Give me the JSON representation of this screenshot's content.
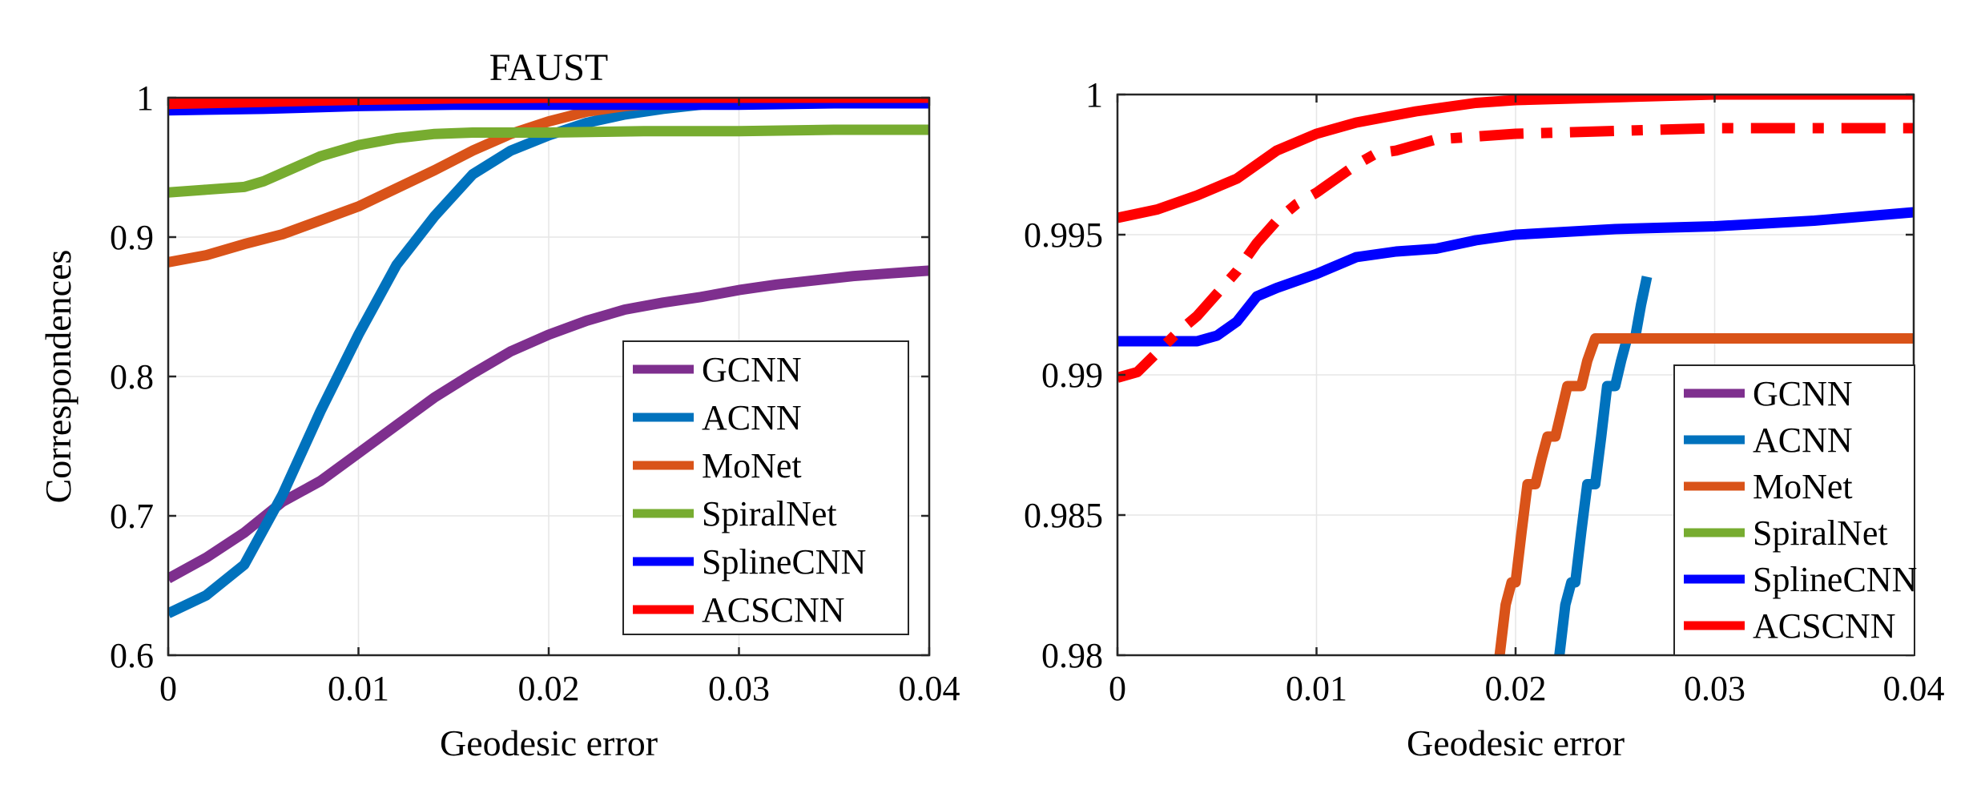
{
  "figure": {
    "series_names": [
      "GCNN",
      "ACNN",
      "MoNet",
      "SpiralNet",
      "SplineCNN",
      "ACSCNN"
    ],
    "colors": {
      "GCNN": "#7E2F8E",
      "ACNN": "#0072BD",
      "MoNet": "#D95319",
      "SpiralNet": "#77AC30",
      "SplineCNN": "#0000FF",
      "ACSCNN": "#FF0000",
      "grid": "#E6E6E6",
      "axis": "#262626"
    }
  },
  "chart_data": [
    {
      "type": "line",
      "title": "FAUST",
      "xlabel": "Geodesic error",
      "ylabel": "Correspondences",
      "xlim": [
        0,
        0.04
      ],
      "ylim": [
        0.6,
        1
      ],
      "xticks": [
        0,
        0.01,
        0.02,
        0.03,
        0.04
      ],
      "xtick_labels": [
        "0",
        "0.01",
        "0.02",
        "0.03",
        "0.04"
      ],
      "yticks": [
        0.6,
        0.7,
        0.8,
        0.9,
        1
      ],
      "ytick_labels": [
        "0.6",
        "0.7",
        "0.8",
        "0.9",
        "1"
      ],
      "grid": true,
      "legend": "bottom-right",
      "series": [
        {
          "name": "GCNN",
          "x": [
            0,
            0.002,
            0.004,
            0.006,
            0.008,
            0.01,
            0.012,
            0.014,
            0.016,
            0.018,
            0.02,
            0.022,
            0.024,
            0.026,
            0.028,
            0.03,
            0.032,
            0.034,
            0.036,
            0.038,
            0.04
          ],
          "y": [
            0.655,
            0.67,
            0.688,
            0.71,
            0.725,
            0.745,
            0.765,
            0.785,
            0.802,
            0.818,
            0.83,
            0.84,
            0.848,
            0.853,
            0.857,
            0.862,
            0.866,
            0.869,
            0.872,
            0.874,
            0.876
          ]
        },
        {
          "name": "ACNN",
          "x": [
            0,
            0.002,
            0.004,
            0.006,
            0.008,
            0.01,
            0.012,
            0.014,
            0.016,
            0.018,
            0.02,
            0.022,
            0.024,
            0.026,
            0.028,
            0.03,
            0.035,
            0.04
          ],
          "y": [
            0.63,
            0.643,
            0.665,
            0.715,
            0.775,
            0.83,
            0.88,
            0.915,
            0.945,
            0.962,
            0.973,
            0.982,
            0.988,
            0.992,
            0.995,
            0.997,
            0.998,
            0.998
          ]
        },
        {
          "name": "MoNet",
          "x": [
            0,
            0.002,
            0.004,
            0.006,
            0.008,
            0.01,
            0.012,
            0.014,
            0.016,
            0.018,
            0.02,
            0.022,
            0.024,
            0.026,
            0.03,
            0.035,
            0.04
          ],
          "y": [
            0.882,
            0.887,
            0.895,
            0.902,
            0.912,
            0.922,
            0.935,
            0.948,
            0.962,
            0.974,
            0.983,
            0.99,
            0.994,
            0.996,
            0.997,
            0.997,
            0.997
          ]
        },
        {
          "name": "SpiralNet",
          "x": [
            0,
            0.002,
            0.004,
            0.005,
            0.006,
            0.008,
            0.01,
            0.012,
            0.014,
            0.016,
            0.018,
            0.02,
            0.025,
            0.03,
            0.035,
            0.04
          ],
          "y": [
            0.932,
            0.934,
            0.936,
            0.94,
            0.946,
            0.958,
            0.966,
            0.971,
            0.974,
            0.975,
            0.975,
            0.975,
            0.976,
            0.976,
            0.977,
            0.977
          ]
        },
        {
          "name": "SplineCNN",
          "x": [
            0,
            0.005,
            0.01,
            0.015,
            0.02,
            0.025,
            0.03,
            0.035,
            0.04
          ],
          "y": [
            0.991,
            0.992,
            0.994,
            0.995,
            0.995,
            0.995,
            0.995,
            0.996,
            0.996
          ]
        },
        {
          "name": "ACSCNN",
          "x": [
            0,
            0.005,
            0.01,
            0.015,
            0.02,
            0.025,
            0.03,
            0.035,
            0.04
          ],
          "y": [
            0.9955,
            0.997,
            0.9985,
            0.9995,
            1,
            1,
            1,
            1,
            1
          ]
        }
      ]
    },
    {
      "type": "line",
      "title": "",
      "xlabel": "Geodesic error",
      "ylabel": "",
      "xlim": [
        0,
        0.04
      ],
      "ylim": [
        0.98,
        1
      ],
      "xticks": [
        0,
        0.01,
        0.02,
        0.03,
        0.04
      ],
      "xtick_labels": [
        "0",
        "0.01",
        "0.02",
        "0.03",
        "0.04"
      ],
      "yticks": [
        0.98,
        0.985,
        0.99,
        0.995,
        1
      ],
      "ytick_labels": [
        "0.98",
        "0.985",
        "0.99",
        "0.995",
        "1"
      ],
      "grid": true,
      "legend": "bottom-right",
      "series": [
        {
          "name": "GCNN",
          "x": [],
          "y": []
        },
        {
          "name": "ACNN",
          "x": [
            0.0222,
            0.0225,
            0.0228,
            0.023,
            0.0233,
            0.0236,
            0.024,
            0.0243,
            0.0246,
            0.025,
            0.0253,
            0.0256,
            0.026,
            0.0263,
            0.0266
          ],
          "y": [
            0.98,
            0.9818,
            0.9826,
            0.9826,
            0.9844,
            0.9861,
            0.9861,
            0.9878,
            0.9896,
            0.9896,
            0.9905,
            0.9913,
            0.9913,
            0.9925,
            0.9935
          ]
        },
        {
          "name": "MoNet",
          "x": [
            0.0192,
            0.0195,
            0.0198,
            0.02,
            0.0203,
            0.0206,
            0.021,
            0.0213,
            0.0216,
            0.022,
            0.0223,
            0.0226,
            0.023,
            0.0233,
            0.0236,
            0.024,
            0.03,
            0.04
          ],
          "y": [
            0.98,
            0.9818,
            0.9826,
            0.9826,
            0.9844,
            0.9861,
            0.9861,
            0.987,
            0.9878,
            0.9878,
            0.9887,
            0.9896,
            0.9896,
            0.9896,
            0.9905,
            0.9913,
            0.9913,
            0.9913
          ]
        },
        {
          "name": "SpiralNet",
          "x": [],
          "y": []
        },
        {
          "name": "SplineCNN",
          "x": [
            0,
            0.002,
            0.004,
            0.005,
            0.006,
            0.007,
            0.008,
            0.01,
            0.012,
            0.014,
            0.016,
            0.018,
            0.02,
            0.025,
            0.03,
            0.035,
            0.04
          ],
          "y": [
            0.9912,
            0.9912,
            0.9912,
            0.9914,
            0.9919,
            0.9928,
            0.9931,
            0.9936,
            0.9942,
            0.9944,
            0.9945,
            0.9948,
            0.995,
            0.9952,
            0.9953,
            0.9955,
            0.9958
          ]
        },
        {
          "name": "ACSCNN",
          "x": [
            0,
            0.002,
            0.004,
            0.006,
            0.008,
            0.01,
            0.012,
            0.015,
            0.018,
            0.02,
            0.025,
            0.03,
            0.035,
            0.04
          ],
          "y": [
            0.9956,
            0.9959,
            0.9964,
            0.997,
            0.998,
            0.9986,
            0.999,
            0.9994,
            0.9997,
            0.9998,
            0.9999,
            1,
            1,
            1
          ]
        },
        {
          "name": "ACSCNN",
          "style": "dash-dot",
          "x": [
            0,
            0.001,
            0.002,
            0.003,
            0.004,
            0.005,
            0.006,
            0.007,
            0.008,
            0.009,
            0.01,
            0.011,
            0.012,
            0.013,
            0.014,
            0.015,
            0.016,
            0.018,
            0.02,
            0.025,
            0.03,
            0.035,
            0.04
          ],
          "y": [
            0.9899,
            0.9901,
            0.9908,
            0.9915,
            0.9921,
            0.9929,
            0.9937,
            0.9947,
            0.9955,
            0.9961,
            0.9965,
            0.997,
            0.9975,
            0.9979,
            0.998,
            0.9982,
            0.9984,
            0.9985,
            0.9986,
            0.9987,
            0.9988,
            0.9988,
            0.9988
          ]
        }
      ]
    }
  ]
}
